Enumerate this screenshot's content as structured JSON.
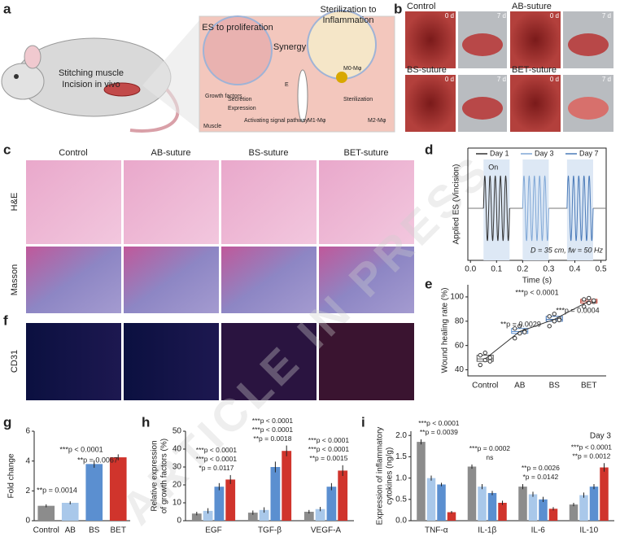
{
  "watermark": "ARTICLE IN PRESS",
  "panel_labels": [
    "a",
    "b",
    "c",
    "d",
    "e",
    "f",
    "g",
    "h",
    "i"
  ],
  "panel_a": {
    "mouse_label": [
      "Stitching muscle",
      "Incision in vivo"
    ],
    "left_title": "ES to proliferation",
    "right_title": [
      "Sterilization to",
      "Inflammation"
    ],
    "synergy": "Synergy",
    "labels": [
      "Growth factors",
      "Secretion",
      "Expression",
      "Activating signal pathway",
      "Muscle",
      "E",
      "M0-Mφ",
      "Sterilization",
      "M1-Mφ",
      "M2-Mφ"
    ]
  },
  "panel_b": {
    "groups": [
      "Control",
      "AB-suture",
      "BS-suture",
      "BET-suture"
    ],
    "days": [
      "0 d",
      "7 d"
    ]
  },
  "panel_c": {
    "columns": [
      "Control",
      "AB-suture",
      "BS-suture",
      "BET-suture"
    ],
    "rows": [
      "H&E",
      "Masson"
    ]
  },
  "panel_f": {
    "row": "CD31"
  },
  "chart_data": [
    {
      "type": "line",
      "ylabel": "Applied ES (Vincision)",
      "xlabel": "Time (s)",
      "annotation": "D = 35 cm, fw = 50 Hz",
      "on_label": "On",
      "series": [
        {
          "name": "Day 1",
          "color": "#333333",
          "x": [
            0.05,
            0.15
          ]
        },
        {
          "name": "Day 3",
          "color": "#7fa7d6",
          "x": [
            0.2,
            0.3
          ]
        },
        {
          "name": "Day 7",
          "color": "#4a7ab8",
          "x": [
            0.37,
            0.47
          ]
        }
      ],
      "xlim": [
        -0.01,
        0.52
      ],
      "xticks": [
        {
          "value": 0,
          "label": "0.0"
        },
        0.1,
        0.2,
        0.3,
        0.4,
        0.5
      ],
      "shade": "#dde8f5"
    },
    {
      "type": "box",
      "ylabel": "Wound healing rate (%)",
      "categories": [
        "Control",
        "AB",
        "BS",
        "BET"
      ],
      "values": [
        [
          44,
          48,
          50,
          52,
          54,
          47
        ],
        [
          66,
          70,
          72,
          74,
          76,
          71
        ],
        [
          76,
          80,
          82,
          84,
          86,
          81
        ],
        [
          92,
          95,
          96,
          98,
          99,
          97
        ]
      ],
      "colors": [
        "#555555",
        "#5b8fd0",
        "#3f6fb0",
        "#c0392b"
      ],
      "ylim": [
        35,
        110
      ],
      "yticks": [
        40,
        60,
        80,
        100
      ],
      "annotations": [
        "***p < 0.0001",
        "**p = 0.0029",
        "***p = 0.0004"
      ]
    },
    {
      "type": "bar",
      "ylabel": "Fold change",
      "categories": [
        "Control",
        "AB",
        "BS",
        "BET"
      ],
      "values": [
        1.0,
        1.2,
        3.8,
        4.25
      ],
      "errors": [
        0.1,
        0.1,
        0.25,
        0.2
      ],
      "colors": [
        "#8c8c8c",
        "#a9c8ea",
        "#5b8fd0",
        "#d0342c"
      ],
      "ylim": [
        0,
        6
      ],
      "yticks": [
        0,
        2,
        4,
        6
      ],
      "annotations": [
        "**p = 0.0014",
        "***p < 0.0001",
        "**p = 0.0067"
      ]
    },
    {
      "type": "grouped-bar",
      "ylabel": [
        "Relative expression",
        "of growth factors (%)"
      ],
      "categories": [
        "EGF",
        "TGF-β",
        "VEGF-A"
      ],
      "series": [
        {
          "color": "#8c8c8c",
          "values": [
            4,
            4.5,
            5
          ],
          "errors": [
            1,
            1.2,
            1
          ]
        },
        {
          "color": "#a9c8ea",
          "values": [
            5.5,
            6,
            6.5
          ],
          "errors": [
            1.5,
            1.5,
            1.2
          ]
        },
        {
          "color": "#5b8fd0",
          "values": [
            19,
            30,
            19
          ],
          "errors": [
            2,
            3,
            2
          ]
        },
        {
          "color": "#d0342c",
          "values": [
            23,
            39,
            28
          ],
          "errors": [
            2.5,
            3,
            3
          ]
        }
      ],
      "ylim": [
        0,
        50
      ],
      "yticks": [
        0,
        10,
        20,
        30,
        40,
        50
      ],
      "annotations": [
        [
          "***p < 0.0001",
          "***p < 0.0001",
          "*p = 0.0117"
        ],
        [
          "***p < 0.0001",
          "***p < 0.0001",
          "**p = 0.0018"
        ],
        [
          "***p < 0.0001",
          "***p < 0.0001",
          "**p = 0.0015"
        ]
      ]
    },
    {
      "type": "grouped-bar",
      "ylabel": [
        "Expression of inflammatory",
        "cytokines (ng/g)"
      ],
      "categories": [
        "TNF-α",
        "IL-1β",
        "IL-6",
        "IL-10"
      ],
      "note": "Day 3",
      "series": [
        {
          "color": "#8c8c8c",
          "values": [
            1.85,
            1.27,
            0.8,
            0.38
          ],
          "errors": [
            0.06,
            0.05,
            0.06,
            0.04
          ]
        },
        {
          "color": "#a9c8ea",
          "values": [
            1.0,
            0.8,
            0.62,
            0.6
          ],
          "errors": [
            0.06,
            0.06,
            0.06,
            0.06
          ]
        },
        {
          "color": "#5b8fd0",
          "values": [
            0.85,
            0.65,
            0.5,
            0.8
          ],
          "errors": [
            0.04,
            0.05,
            0.06,
            0.06
          ]
        },
        {
          "color": "#d0342c",
          "values": [
            0.2,
            0.42,
            0.28,
            1.25
          ],
          "errors": [
            0.03,
            0.05,
            0.04,
            0.1
          ]
        }
      ],
      "ylim": [
        0,
        2.1
      ],
      "yticks": [
        {
          "value": 0,
          "label": "0.0"
        },
        0.5,
        {
          "value": 1,
          "label": "1.0"
        },
        1.5,
        {
          "value": 2,
          "label": "2.0"
        }
      ],
      "annotations": [
        [
          "***p < 0.0001",
          "**p = 0.0039"
        ],
        [
          "***p = 0.0002",
          "ns"
        ],
        [
          "**p = 0.0026",
          "*p = 0.0142"
        ],
        [
          "***p < 0.0001",
          "**p = 0.0012"
        ]
      ]
    }
  ]
}
